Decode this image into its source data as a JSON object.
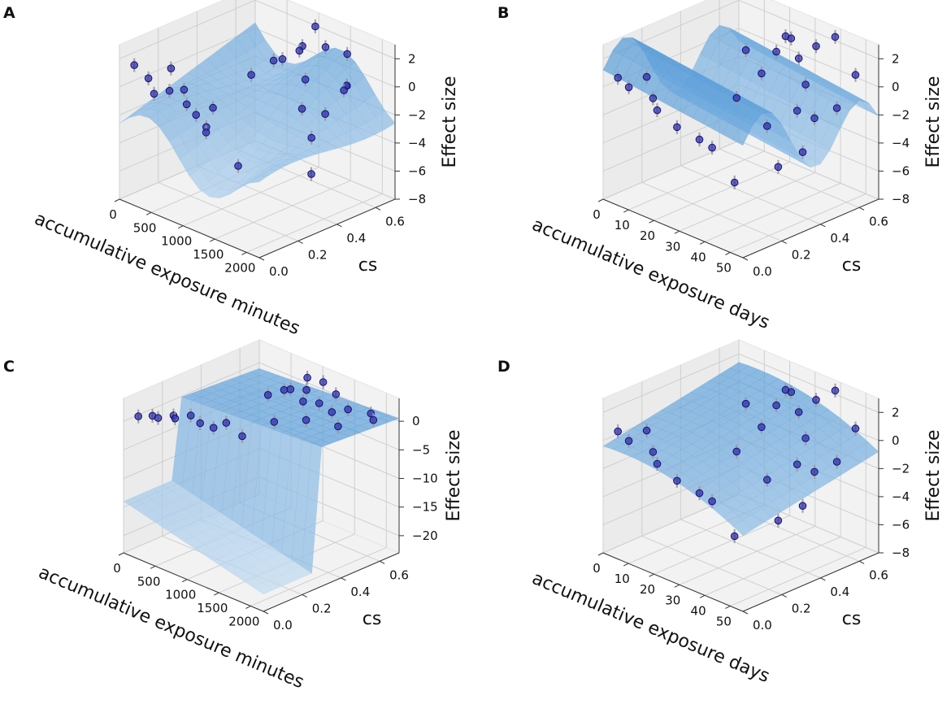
{
  "chart_data": [
    {
      "type": "scatter",
      "panel": "A",
      "surface": "wave",
      "xlabel": "accumulative exposure minutes",
      "ylabel": "cs",
      "zlabel": "Effect size",
      "xlim": [
        0,
        2200
      ],
      "ylim": [
        0,
        0.7
      ],
      "zlim": [
        -8,
        3
      ],
      "xticks": [
        "0",
        "500",
        "1000",
        "1500",
        "2000"
      ],
      "xtick_values": [
        0,
        500,
        1000,
        1500,
        2000
      ],
      "yticks": [
        "0.0",
        "0.2",
        "0.4",
        "0.6"
      ],
      "ytick_values": [
        0,
        0.2,
        0.4,
        0.6
      ],
      "zticks": [
        "2",
        "0",
        "−2",
        "−4",
        "−6",
        "−8"
      ],
      "ztick_values": [
        2,
        0,
        -2,
        -4,
        -6,
        -8
      ],
      "points": [
        {
          "x": 80,
          "y": 0.05,
          "z": 1.4
        },
        {
          "x": 150,
          "y": 0.1,
          "z": 0.3
        },
        {
          "x": 300,
          "y": 0.08,
          "z": -0.4
        },
        {
          "x": 420,
          "y": 0.12,
          "z": -0.2
        },
        {
          "x": 200,
          "y": 0.2,
          "z": 0.5
        },
        {
          "x": 600,
          "y": 0.15,
          "z": -1.0
        },
        {
          "x": 100,
          "y": 0.3,
          "z": -1.8
        },
        {
          "x": 350,
          "y": 0.28,
          "z": -3.0
        },
        {
          "x": 450,
          "y": 0.3,
          "z": -3.8
        },
        {
          "x": 600,
          "y": 0.25,
          "z": -3.6
        },
        {
          "x": 800,
          "y": 0.35,
          "z": -6.2
        },
        {
          "x": 250,
          "y": 0.4,
          "z": -3.4
        },
        {
          "x": 700,
          "y": 0.45,
          "z": -0.5
        },
        {
          "x": 900,
          "y": 0.5,
          "z": 0.6
        },
        {
          "x": 1100,
          "y": 0.48,
          "z": 1.2
        },
        {
          "x": 1200,
          "y": 0.55,
          "z": 1.9
        },
        {
          "x": 1400,
          "y": 0.5,
          "z": 0.2
        },
        {
          "x": 1250,
          "y": 0.6,
          "z": 3.1
        },
        {
          "x": 1500,
          "y": 0.45,
          "z": -1.4
        },
        {
          "x": 1650,
          "y": 0.52,
          "z": -1.9
        },
        {
          "x": 1800,
          "y": 0.4,
          "z": -2.6
        },
        {
          "x": 1900,
          "y": 0.55,
          "z": 0.4
        },
        {
          "x": 2050,
          "y": 0.5,
          "z": 1.0
        },
        {
          "x": 1600,
          "y": 0.65,
          "z": 1.5
        },
        {
          "x": 1950,
          "y": 0.35,
          "z": -4.6
        },
        {
          "x": 1000,
          "y": 0.6,
          "z": 0.9
        },
        {
          "x": 1350,
          "y": 0.62,
          "z": 1.7
        },
        {
          "x": 1700,
          "y": 0.6,
          "z": -0.6
        }
      ]
    },
    {
      "type": "scatter",
      "panel": "B",
      "surface": "ridge",
      "xlabel": "accumulative exposure days",
      "ylabel": "cs",
      "zlabel": "Effect size",
      "xlim": [
        0,
        55
      ],
      "ylim": [
        0,
        0.7
      ],
      "zlim": [
        -8,
        3
      ],
      "xticks": [
        "0",
        "10",
        "20",
        "30",
        "40",
        "50"
      ],
      "xtick_values": [
        0,
        10,
        20,
        30,
        40,
        50
      ],
      "yticks": [
        "0.0",
        "0.2",
        "0.4",
        "0.6"
      ],
      "ytick_values": [
        0,
        0.2,
        0.4,
        0.6
      ],
      "zticks": [
        "2",
        "0",
        "−2",
        "−4",
        "−6",
        "−8"
      ],
      "ztick_values": [
        2,
        0,
        -2,
        -4,
        -6,
        -8
      ],
      "points": [
        {
          "x": 2,
          "y": 0.05,
          "z": 0.5
        },
        {
          "x": 4,
          "y": 0.08,
          "z": -0.2
        },
        {
          "x": 8,
          "y": 0.12,
          "z": 0.6
        },
        {
          "x": 12,
          "y": 0.1,
          "z": -0.5
        },
        {
          "x": 6,
          "y": 0.2,
          "z": -2.4
        },
        {
          "x": 10,
          "y": 0.25,
          "z": -3.6
        },
        {
          "x": 15,
          "y": 0.3,
          "z": -4.4
        },
        {
          "x": 20,
          "y": 0.3,
          "z": -4.6
        },
        {
          "x": 25,
          "y": 0.35,
          "z": -7.0
        },
        {
          "x": 22,
          "y": 0.4,
          "z": -1.5
        },
        {
          "x": 28,
          "y": 0.45,
          "z": 0.4
        },
        {
          "x": 30,
          "y": 0.5,
          "z": 1.8
        },
        {
          "x": 32,
          "y": 0.55,
          "z": 2.6
        },
        {
          "x": 35,
          "y": 0.55,
          "z": 1.4
        },
        {
          "x": 38,
          "y": 0.6,
          "z": 2.2
        },
        {
          "x": 40,
          "y": 0.52,
          "z": 0.1
        },
        {
          "x": 42,
          "y": 0.45,
          "z": -1.2
        },
        {
          "x": 45,
          "y": 0.5,
          "z": -1.8
        },
        {
          "x": 48,
          "y": 0.4,
          "z": -3.4
        },
        {
          "x": 50,
          "y": 0.55,
          "z": -1.0
        },
        {
          "x": 52,
          "y": 0.62,
          "z": 1.1
        },
        {
          "x": 34,
          "y": 0.4,
          "z": -2.6
        },
        {
          "x": 44,
          "y": 0.62,
          "z": 3.2
        },
        {
          "x": 18,
          "y": 0.5,
          "z": 1.0
        },
        {
          "x": 26,
          "y": 0.6,
          "z": 2.0
        },
        {
          "x": 46,
          "y": 0.3,
          "z": -4.0
        }
      ]
    },
    {
      "type": "scatter",
      "panel": "C",
      "surface": "step",
      "xlabel": "accumulative exposure minutes",
      "ylabel": "cs",
      "zlabel": "Effect size",
      "xlim": [
        0,
        2200
      ],
      "ylim": [
        0,
        0.7
      ],
      "zlim": [
        -23,
        4
      ],
      "xticks": [
        "0",
        "500",
        "1000",
        "1500",
        "2000"
      ],
      "xtick_values": [
        0,
        500,
        1000,
        1500,
        2000
      ],
      "yticks": [
        "0.0",
        "0.2",
        "0.4",
        "0.6"
      ],
      "ytick_values": [
        0,
        0.2,
        0.4,
        0.6
      ],
      "zticks": [
        "0",
        "−5",
        "−10",
        "−15",
        "−20"
      ],
      "ztick_values": [
        0,
        -5,
        -10,
        -15,
        -20
      ],
      "points": [
        {
          "x": 80,
          "y": 0.05,
          "z": 0.5
        },
        {
          "x": 150,
          "y": 0.1,
          "z": 0.2
        },
        {
          "x": 300,
          "y": 0.08,
          "z": 0.8
        },
        {
          "x": 420,
          "y": 0.12,
          "z": 1.2
        },
        {
          "x": 200,
          "y": 0.2,
          "z": -1.5
        },
        {
          "x": 600,
          "y": 0.15,
          "z": 1.6
        },
        {
          "x": 350,
          "y": 0.28,
          "z": -2.8
        },
        {
          "x": 500,
          "y": 0.3,
          "z": -3.2
        },
        {
          "x": 700,
          "y": 0.3,
          "z": -1.4
        },
        {
          "x": 800,
          "y": 0.35,
          "z": -4.0
        },
        {
          "x": 900,
          "y": 0.45,
          "z": 2.2
        },
        {
          "x": 1000,
          "y": 0.5,
          "z": 2.8
        },
        {
          "x": 1100,
          "y": 0.5,
          "z": 3.4
        },
        {
          "x": 1200,
          "y": 0.55,
          "z": 3.0
        },
        {
          "x": 1300,
          "y": 0.5,
          "z": 2.2
        },
        {
          "x": 1400,
          "y": 0.55,
          "z": 1.6
        },
        {
          "x": 1500,
          "y": 0.45,
          "z": 0.6
        },
        {
          "x": 1600,
          "y": 0.55,
          "z": 1.0
        },
        {
          "x": 1250,
          "y": 0.62,
          "z": 3.6
        },
        {
          "x": 1700,
          "y": 0.6,
          "z": 1.2
        },
        {
          "x": 1850,
          "y": 0.5,
          "z": 0.4
        },
        {
          "x": 2000,
          "y": 0.62,
          "z": 1.6
        },
        {
          "x": 2100,
          "y": 0.6,
          "z": 1.2
        },
        {
          "x": 1150,
          "y": 0.4,
          "z": -0.6
        },
        {
          "x": 1000,
          "y": 0.62,
          "z": 3.2
        },
        {
          "x": 1450,
          "y": 0.62,
          "z": 2.4
        }
      ]
    },
    {
      "type": "scatter",
      "panel": "D",
      "surface": "flat",
      "xlabel": "accumulative exposure days",
      "ylabel": "cs",
      "zlabel": "Effect size",
      "xlim": [
        0,
        55
      ],
      "ylim": [
        0,
        0.7
      ],
      "zlim": [
        -8,
        3
      ],
      "xticks": [
        "0",
        "10",
        "20",
        "30",
        "40",
        "50"
      ],
      "xtick_values": [
        0,
        10,
        20,
        30,
        40,
        50
      ],
      "yticks": [
        "0.0",
        "0.2",
        "0.4",
        "0.6"
      ],
      "ytick_values": [
        0,
        0.2,
        0.4,
        0.6
      ],
      "zticks": [
        "2",
        "0",
        "−2",
        "−4",
        "−6",
        "−8"
      ],
      "ztick_values": [
        2,
        0,
        -2,
        -4,
        -6,
        -8
      ],
      "points": [
        {
          "x": 2,
          "y": 0.05,
          "z": 0.5
        },
        {
          "x": 4,
          "y": 0.08,
          "z": -0.2
        },
        {
          "x": 8,
          "y": 0.12,
          "z": 0.6
        },
        {
          "x": 12,
          "y": 0.1,
          "z": -0.5
        },
        {
          "x": 6,
          "y": 0.2,
          "z": -2.4
        },
        {
          "x": 10,
          "y": 0.25,
          "z": -3.6
        },
        {
          "x": 15,
          "y": 0.3,
          "z": -4.4
        },
        {
          "x": 20,
          "y": 0.3,
          "z": -4.6
        },
        {
          "x": 25,
          "y": 0.35,
          "z": -7.0
        },
        {
          "x": 22,
          "y": 0.4,
          "z": -1.5
        },
        {
          "x": 28,
          "y": 0.45,
          "z": 0.4
        },
        {
          "x": 30,
          "y": 0.5,
          "z": 1.8
        },
        {
          "x": 32,
          "y": 0.55,
          "z": 2.6
        },
        {
          "x": 35,
          "y": 0.55,
          "z": 1.4
        },
        {
          "x": 38,
          "y": 0.6,
          "z": 2.2
        },
        {
          "x": 40,
          "y": 0.52,
          "z": 0.1
        },
        {
          "x": 42,
          "y": 0.45,
          "z": -1.2
        },
        {
          "x": 45,
          "y": 0.5,
          "z": -1.8
        },
        {
          "x": 48,
          "y": 0.4,
          "z": -3.4
        },
        {
          "x": 50,
          "y": 0.55,
          "z": -1.0
        },
        {
          "x": 52,
          "y": 0.62,
          "z": 1.1
        },
        {
          "x": 34,
          "y": 0.4,
          "z": -2.6
        },
        {
          "x": 44,
          "y": 0.62,
          "z": 3.2
        },
        {
          "x": 18,
          "y": 0.5,
          "z": 1.0
        },
        {
          "x": 26,
          "y": 0.6,
          "z": 2.0
        },
        {
          "x": 46,
          "y": 0.3,
          "z": -4.0
        }
      ]
    }
  ]
}
